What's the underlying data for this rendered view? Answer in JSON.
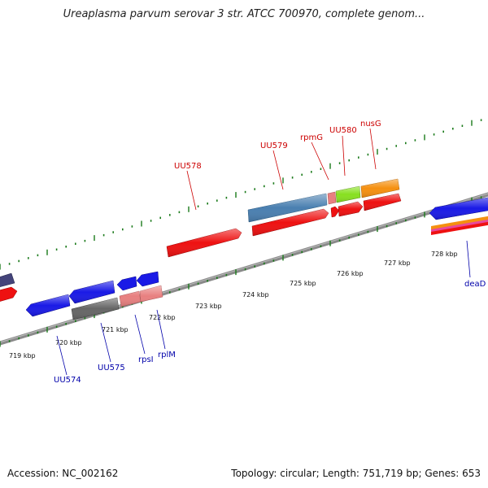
{
  "title": "Ureaplasma parvum serovar 3 str. ATCC 700970, complete genom...",
  "footer": {
    "accession": "Accession: NC_002162",
    "summary": "Topology: circular; Length: 751,719 bp; Genes: 653"
  },
  "ticks": [
    "719 kbp",
    "720 kbp",
    "721 kbp",
    "722 kbp",
    "723 kbp",
    "724 kbp",
    "725 kbp",
    "726 kbp",
    "727 kbp",
    "728 kbp"
  ],
  "genes_top": [
    "UU578",
    "UU579",
    "rpmG",
    "UU580",
    "nusG"
  ],
  "genes_bottom": [
    "UU574",
    "UU575",
    "rpsI",
    "rplM",
    "deaD"
  ],
  "colors": {
    "backbone": "#8a8a8a",
    "top_label": "#cc0000",
    "bottom_label": "#0000aa",
    "tick": "#1a7a1a",
    "red": "#ee1111",
    "blue": "#1a1ae6",
    "steel": "#4a7fb0",
    "pink": "#e88080",
    "green": "#88e020",
    "orange": "#f59010",
    "grey": "#666666",
    "navy": "#44447a"
  }
}
